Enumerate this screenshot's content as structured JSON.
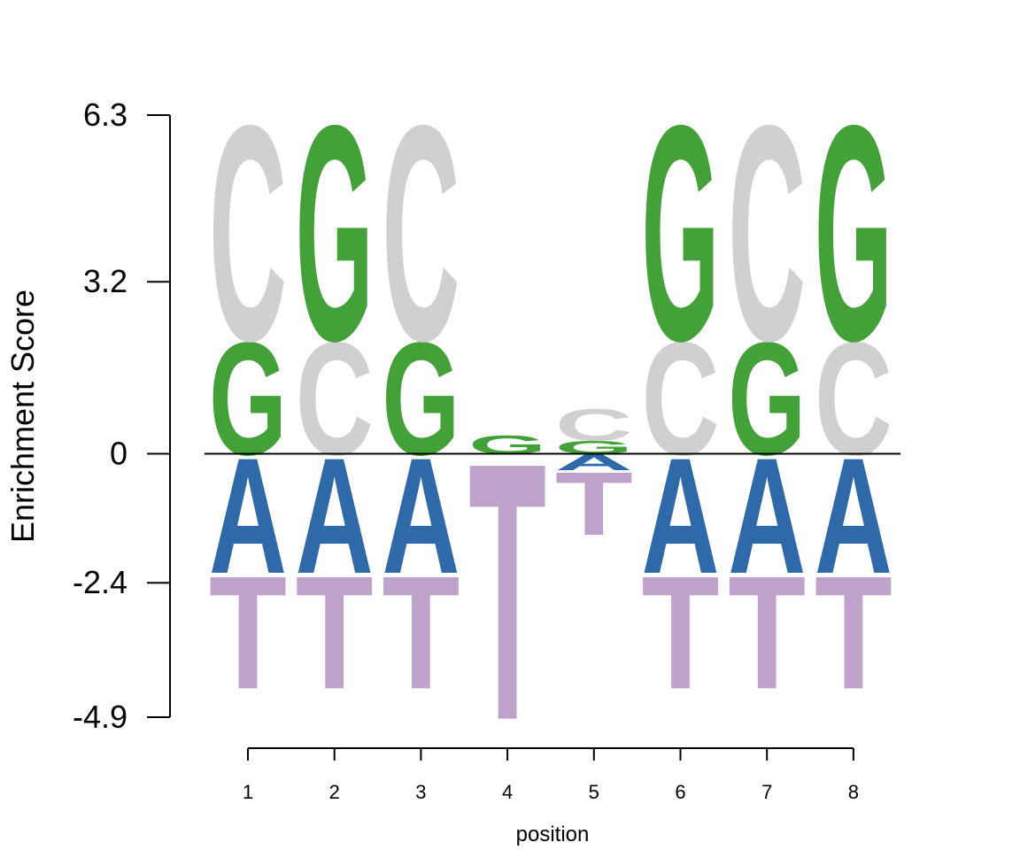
{
  "chart_data": {
    "type": "sequence-logo",
    "ylabel": "Enrichment Score",
    "xlabel": "position",
    "y_ticks": [
      6.3,
      3.2,
      0,
      -2.4,
      -4.9
    ],
    "y_tick_labels": [
      "6.3",
      "3.2",
      "0",
      "-2.4",
      "-4.9"
    ],
    "ylim": [
      -4.9,
      6.3
    ],
    "positions": [
      1,
      2,
      3,
      4,
      5,
      6,
      7,
      8
    ],
    "position_labels": [
      "1",
      "2",
      "3",
      "4",
      "5",
      "6",
      "7",
      "8"
    ],
    "colors": {
      "A": "#2E69A9",
      "C": "#D0D0D0",
      "G": "#42A238",
      "T": "#BFA2CC"
    },
    "logo": [
      {
        "position": 1,
        "positive": [
          {
            "letter": "G",
            "height": 2.15
          },
          {
            "letter": "C",
            "height": 4.1
          }
        ],
        "negative": [
          {
            "letter": "A",
            "height": 2.2
          },
          {
            "letter": "T",
            "height": 2.15
          }
        ]
      },
      {
        "position": 2,
        "positive": [
          {
            "letter": "C",
            "height": 2.15
          },
          {
            "letter": "G",
            "height": 4.1
          }
        ],
        "negative": [
          {
            "letter": "A",
            "height": 2.2
          },
          {
            "letter": "T",
            "height": 2.15
          }
        ]
      },
      {
        "position": 3,
        "positive": [
          {
            "letter": "G",
            "height": 2.15
          },
          {
            "letter": "C",
            "height": 4.1
          }
        ],
        "negative": [
          {
            "letter": "A",
            "height": 2.2
          },
          {
            "letter": "T",
            "height": 2.15
          }
        ]
      },
      {
        "position": 4,
        "positive": [
          {
            "letter": "G",
            "height": 0.35
          }
        ],
        "negative": [
          {
            "letter": "T",
            "height": 4.9
          }
        ]
      },
      {
        "position": 5,
        "positive": [
          {
            "letter": "G",
            "height": 0.25
          },
          {
            "letter": "C",
            "height": 0.6
          }
        ],
        "negative": [
          {
            "letter": "A",
            "height": 0.3
          },
          {
            "letter": "T",
            "height": 1.2
          }
        ]
      },
      {
        "position": 6,
        "positive": [
          {
            "letter": "C",
            "height": 2.15
          },
          {
            "letter": "G",
            "height": 4.1
          }
        ],
        "negative": [
          {
            "letter": "A",
            "height": 2.2
          },
          {
            "letter": "T",
            "height": 2.15
          }
        ]
      },
      {
        "position": 7,
        "positive": [
          {
            "letter": "G",
            "height": 2.15
          },
          {
            "letter": "C",
            "height": 4.1
          }
        ],
        "negative": [
          {
            "letter": "A",
            "height": 2.2
          },
          {
            "letter": "T",
            "height": 2.15
          }
        ]
      },
      {
        "position": 8,
        "positive": [
          {
            "letter": "C",
            "height": 2.15
          },
          {
            "letter": "G",
            "height": 4.1
          }
        ],
        "negative": [
          {
            "letter": "A",
            "height": 2.2
          },
          {
            "letter": "T",
            "height": 2.15
          }
        ]
      }
    ]
  }
}
